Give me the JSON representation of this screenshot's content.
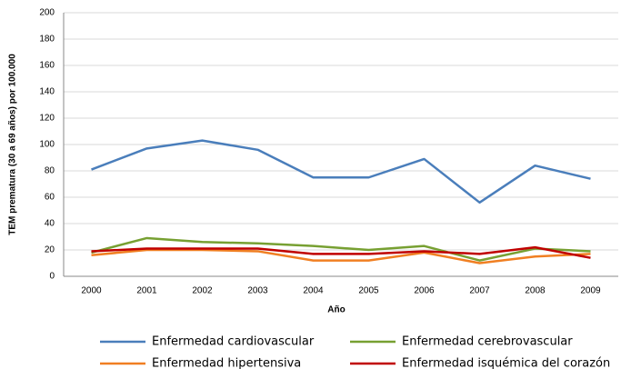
{
  "chart_data": {
    "type": "line",
    "x_label": "Año",
    "y_label": "TEM prematura (30 a 69 años) por 100.000",
    "categories": [
      "2000",
      "2001",
      "2002",
      "2003",
      "2004",
      "2005",
      "2006",
      "2007",
      "2008",
      "2009"
    ],
    "series": [
      {
        "name": "Enfermedad cardiovascular",
        "color": "#4a7ebb",
        "values": [
          81,
          97,
          103,
          96,
          75,
          75,
          89,
          56,
          84,
          74
        ]
      },
      {
        "name": "Enfermedad cerebrovascular",
        "color": "#77a032",
        "values": [
          18,
          29,
          26,
          25,
          23,
          20,
          23,
          12,
          21,
          19
        ]
      },
      {
        "name": "Enfermedad hipertensiva",
        "color": "#f07f22",
        "values": [
          16,
          20,
          20,
          19,
          12,
          12,
          18,
          10,
          15,
          17
        ]
      },
      {
        "name": "Enfermedad isquémica del corazón",
        "color": "#c00000",
        "values": [
          19,
          21,
          21,
          21,
          17,
          17,
          19,
          17,
          22,
          14
        ]
      }
    ],
    "ylim": [
      0,
      200
    ],
    "yticks": [
      0,
      20,
      40,
      60,
      80,
      100,
      120,
      140,
      160,
      180,
      200
    ],
    "grid": true,
    "legend": "bottom"
  }
}
